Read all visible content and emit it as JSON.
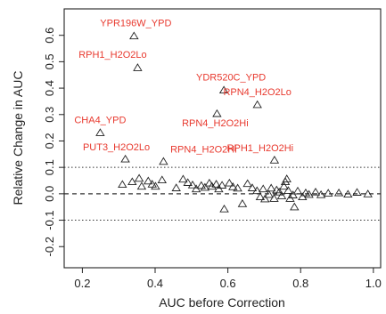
{
  "chart_data": {
    "type": "scatter",
    "title": "",
    "xlabel": "AUC before Correction",
    "ylabel": "Relative Change in AUC",
    "xlim": [
      0.15,
      1.02
    ],
    "ylim": [
      -0.28,
      0.7
    ],
    "xticks": [
      "0.2",
      "0.4",
      "0.6",
      "0.8",
      "1.0"
    ],
    "xtick_values": [
      0.2,
      0.4,
      0.6,
      0.8,
      1.0
    ],
    "yticks": [
      "-0.2",
      "-0.1",
      "0.0",
      "0.1",
      "0.2",
      "0.3",
      "0.4",
      "0.5",
      "0.6"
    ],
    "ytick_values": [
      -0.2,
      -0.1,
      0.0,
      0.1,
      0.2,
      0.3,
      0.4,
      0.5,
      0.6
    ],
    "hlines": [
      {
        "y": 0.1,
        "style": "dotted"
      },
      {
        "y": 0.0,
        "style": "dashed"
      },
      {
        "y": -0.1,
        "style": "dotted"
      }
    ],
    "grid": false,
    "marker": "open-triangle",
    "label_color": "#e8392e",
    "point_color": "#222222",
    "points": [
      {
        "x": 0.342,
        "y": 0.597,
        "label": "YPR196W_YPD"
      },
      {
        "x": 0.352,
        "y": 0.477,
        "label": "RPH1_H2O2Lo"
      },
      {
        "x": 0.589,
        "y": 0.392,
        "label": "YDR520C_YPD"
      },
      {
        "x": 0.681,
        "y": 0.337,
        "label": "RPN4_H2O2Lo"
      },
      {
        "x": 0.57,
        "y": 0.303,
        "label": "RPN4_H2O2Hi"
      },
      {
        "x": 0.249,
        "y": 0.231,
        "label": "CHA4_YPD"
      },
      {
        "x": 0.318,
        "y": 0.131,
        "label": "PUT3_H2O2Lo"
      },
      {
        "x": 0.423,
        "y": 0.122,
        "label": "RPN4_H2O2Hi"
      },
      {
        "x": 0.728,
        "y": 0.127,
        "label": "RPH1_H2O2Hi"
      },
      {
        "x": 0.31,
        "y": 0.035
      },
      {
        "x": 0.337,
        "y": 0.045
      },
      {
        "x": 0.356,
        "y": 0.058
      },
      {
        "x": 0.363,
        "y": 0.028
      },
      {
        "x": 0.381,
        "y": 0.048
      },
      {
        "x": 0.392,
        "y": 0.036
      },
      {
        "x": 0.401,
        "y": 0.028
      },
      {
        "x": 0.419,
        "y": 0.052
      },
      {
        "x": 0.458,
        "y": 0.022
      },
      {
        "x": 0.477,
        "y": 0.055
      },
      {
        "x": 0.49,
        "y": 0.042
      },
      {
        "x": 0.503,
        "y": 0.033
      },
      {
        "x": 0.513,
        "y": 0.018
      },
      {
        "x": 0.527,
        "y": 0.031
      },
      {
        "x": 0.537,
        "y": 0.024
      },
      {
        "x": 0.549,
        "y": 0.04
      },
      {
        "x": 0.556,
        "y": 0.028
      },
      {
        "x": 0.568,
        "y": 0.036
      },
      {
        "x": 0.575,
        "y": 0.018
      },
      {
        "x": 0.584,
        "y": 0.032
      },
      {
        "x": 0.59,
        "y": -0.058
      },
      {
        "x": 0.604,
        "y": 0.04
      },
      {
        "x": 0.614,
        "y": 0.026
      },
      {
        "x": 0.627,
        "y": 0.021
      },
      {
        "x": 0.64,
        "y": -0.038
      },
      {
        "x": 0.654,
        "y": 0.038
      },
      {
        "x": 0.667,
        "y": 0.022
      },
      {
        "x": 0.68,
        "y": 0.011
      },
      {
        "x": 0.689,
        "y": -0.012
      },
      {
        "x": 0.697,
        "y": 0.018
      },
      {
        "x": 0.702,
        "y": -0.02
      },
      {
        "x": 0.713,
        "y": -0.003
      },
      {
        "x": 0.719,
        "y": 0.021
      },
      {
        "x": 0.727,
        "y": -0.018
      },
      {
        "x": 0.734,
        "y": 0.014
      },
      {
        "x": 0.741,
        "y": 0.006
      },
      {
        "x": 0.748,
        "y": -0.008
      },
      {
        "x": 0.754,
        "y": 0.028
      },
      {
        "x": 0.758,
        "y": 0.045
      },
      {
        "x": 0.762,
        "y": 0.056
      },
      {
        "x": 0.766,
        "y": 0.012
      },
      {
        "x": 0.771,
        "y": -0.018
      },
      {
        "x": 0.779,
        "y": -0.005
      },
      {
        "x": 0.783,
        "y": -0.05
      },
      {
        "x": 0.792,
        "y": 0.01
      },
      {
        "x": 0.805,
        "y": -0.012
      },
      {
        "x": 0.814,
        "y": 0.003
      },
      {
        "x": 0.823,
        "y": -0.003
      },
      {
        "x": 0.841,
        "y": 0.006
      },
      {
        "x": 0.856,
        "y": -0.004
      },
      {
        "x": 0.876,
        "y": 0.002
      },
      {
        "x": 0.905,
        "y": 0.003
      },
      {
        "x": 0.93,
        "y": -0.002
      },
      {
        "x": 0.955,
        "y": 0.005
      },
      {
        "x": 0.985,
        "y": -0.001
      }
    ]
  }
}
